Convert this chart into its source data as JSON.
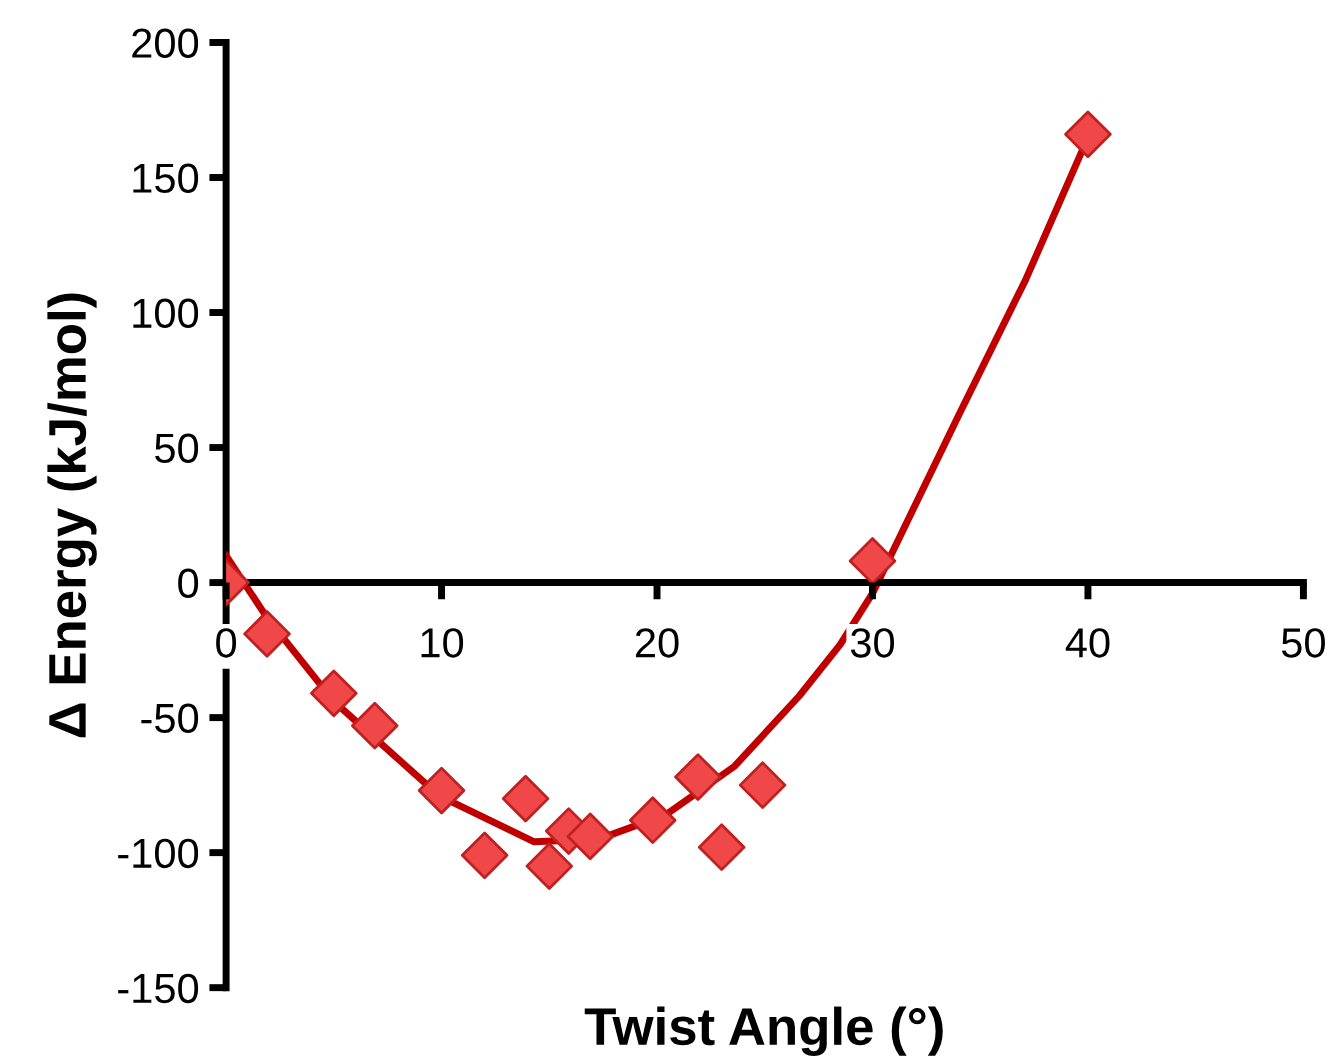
{
  "chart_data": {
    "type": "scatter",
    "xlabel": "Twist Angle (°)",
    "ylabel": "Δ Energy (kJ/mol)",
    "xlim": [
      0,
      50
    ],
    "ylim": [
      -150,
      200
    ],
    "xticks": [
      0,
      10,
      20,
      30,
      40,
      50
    ],
    "yticks": [
      -150,
      -100,
      -50,
      0,
      50,
      100,
      150,
      200
    ],
    "grid": false,
    "legend": false,
    "marker": "diamond",
    "series": [
      {
        "color": "#f04848",
        "x": [
          0,
          1.9,
          5,
          6.9,
          10,
          12,
          13.9,
          15,
          15.9,
          16.9,
          19.8,
          21.9,
          23,
          24.9,
          30,
          40
        ],
        "values": [
          0,
          -19,
          -41,
          -53,
          -77,
          -101,
          -80,
          -105,
          -92,
          -94,
          -88,
          -72,
          -98,
          -75,
          8,
          166
        ]
      },
      {
        "type": "line",
        "color": "#c00000",
        "marker": "none",
        "line_style": "solid",
        "x": [
          0,
          1.9,
          5,
          9.9,
          14.3,
          17.3,
          20.4,
          23.6,
          26.6,
          28.5,
          30,
          34,
          37.1,
          39.9
        ],
        "values": [
          10,
          -13,
          -44,
          -79,
          -96,
          -95,
          -86,
          -68,
          -42,
          -23,
          -4,
          62,
          112,
          163
        ]
      }
    ]
  }
}
